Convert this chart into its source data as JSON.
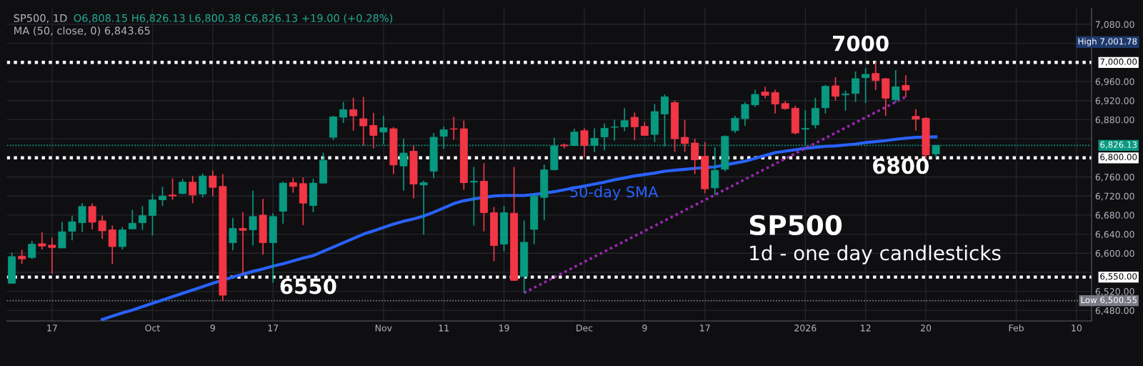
{
  "chart_data": {
    "type": "candlestick",
    "title": "SP500, 1D",
    "subtitle": "O6,808.15 H6,826.13 L6,800.38 C6,826.13 +19.00 (+0.28%)",
    "categories": [
      null,
      null,
      null,
      null,
      "17",
      null,
      null,
      null,
      null,
      null,
      null,
      null,
      null,
      null,
      "Oct",
      null,
      null,
      null,
      null,
      null,
      "9",
      null,
      null,
      null,
      null,
      null,
      "17",
      null,
      null,
      null,
      null,
      null,
      null,
      null,
      null,
      null,
      null,
      "Nov",
      null,
      null,
      null,
      null,
      null,
      "11",
      null,
      null,
      null,
      null,
      null,
      "19",
      null,
      null,
      null,
      null,
      null,
      null,
      null,
      "Dec",
      null,
      null,
      null,
      null,
      null,
      "9",
      null,
      null,
      null,
      null,
      null,
      "17",
      null,
      null,
      null,
      null,
      null,
      null,
      null,
      null,
      null,
      "2026",
      null,
      null,
      null,
      null,
      null,
      "12",
      null,
      null,
      null,
      null,
      null,
      "20",
      null,
      null,
      null,
      null,
      null,
      null,
      null,
      null,
      "Feb",
      null,
      null,
      null,
      null,
      null,
      "10",
      null
    ],
    "ohlc": [
      [
        6537,
        6601,
        6536,
        6593
      ],
      [
        6594,
        6607,
        6578,
        6588
      ],
      [
        6591,
        6626,
        6588,
        6619
      ],
      [
        6620,
        6644,
        6608,
        6615
      ],
      [
        6617,
        6633,
        6557,
        6612
      ],
      [
        6611,
        6666,
        6611,
        6645
      ],
      [
        6646,
        6679,
        6627,
        6666
      ],
      [
        6664,
        6705,
        6645,
        6698
      ],
      [
        6698,
        6705,
        6650,
        6665
      ],
      [
        6668,
        6679,
        6630,
        6647
      ],
      [
        6649,
        6658,
        6578,
        6614
      ],
      [
        6614,
        6655,
        6608,
        6649
      ],
      [
        6651,
        6691,
        6651,
        6663
      ],
      [
        6664,
        6699,
        6649,
        6679
      ],
      [
        6679,
        6724,
        6637,
        6712
      ],
      [
        6712,
        6739,
        6699,
        6720
      ],
      [
        6722,
        6757,
        6712,
        6720
      ],
      [
        6725,
        6756,
        6724,
        6749
      ],
      [
        6749,
        6762,
        6705,
        6722
      ],
      [
        6724,
        6767,
        6717,
        6762
      ],
      [
        6762,
        6773,
        6720,
        6738
      ],
      [
        6740,
        6766,
        6500.55,
        6512
      ],
      [
        6622,
        6674,
        6606,
        6652
      ],
      [
        6652,
        6686,
        6557,
        6648
      ],
      [
        6649,
        6731,
        6616,
        6677
      ],
      [
        6680,
        6714,
        6597,
        6622
      ],
      [
        6622,
        6684,
        6538,
        6677
      ],
      [
        6688,
        6750,
        6662,
        6747
      ],
      [
        6748,
        6758,
        6727,
        6740
      ],
      [
        6746,
        6759,
        6659,
        6705
      ],
      [
        6700,
        6756,
        6686,
        6747
      ],
      [
        6747,
        6811,
        6747,
        6795
      ],
      [
        6843,
        6888,
        6837,
        6886
      ],
      [
        6885,
        6917,
        6873,
        6901
      ],
      [
        6901,
        6926,
        6857,
        6888
      ],
      [
        6882,
        6928,
        6826,
        6867
      ],
      [
        6868,
        6894,
        6820,
        6847
      ],
      [
        6854,
        6888,
        6828,
        6863
      ],
      [
        6861,
        6864,
        6766,
        6785
      ],
      [
        6783,
        6840,
        6731,
        6810
      ],
      [
        6814,
        6826,
        6715,
        6745
      ],
      [
        6743,
        6752,
        6639,
        6748
      ],
      [
        6772,
        6852,
        6757,
        6843
      ],
      [
        6845,
        6866,
        6819,
        6859
      ],
      [
        6861,
        6886,
        6838,
        6860
      ],
      [
        6861,
        6878,
        6733,
        6748
      ],
      [
        6749,
        6781,
        6658,
        6751
      ],
      [
        6751,
        6789,
        6646,
        6685
      ],
      [
        6685,
        6697,
        6583,
        6616
      ],
      [
        6619,
        6699,
        6604,
        6685
      ],
      [
        6684,
        6781,
        6542,
        6543
      ],
      [
        6551,
        6669,
        6517,
        6623
      ],
      [
        6650,
        6726,
        6619,
        6720
      ],
      [
        6717,
        6786,
        6669,
        6775
      ],
      [
        6775,
        6842,
        6774,
        6825
      ],
      [
        6827,
        6830,
        6820,
        6825
      ],
      [
        6826,
        6861,
        6826,
        6854
      ],
      [
        6857,
        6862,
        6801,
        6826
      ],
      [
        6826,
        6862,
        6812,
        6841
      ],
      [
        6844,
        6872,
        6816,
        6862
      ],
      [
        6864,
        6880,
        6836,
        6865
      ],
      [
        6865,
        6904,
        6856,
        6878
      ],
      [
        6885,
        6895,
        6837,
        6865
      ],
      [
        6866,
        6875,
        6847,
        6847
      ],
      [
        6849,
        6913,
        6833,
        6897
      ],
      [
        6892,
        6933,
        6824,
        6928
      ],
      [
        6916,
        6920,
        6813,
        6840
      ],
      [
        6843,
        6880,
        6813,
        6830
      ],
      [
        6831,
        6840,
        6766,
        6796
      ],
      [
        6803,
        6833,
        6726,
        6735
      ],
      [
        6737,
        6822,
        6722,
        6774
      ],
      [
        6776,
        6847,
        6772,
        6845
      ],
      [
        6857,
        6888,
        6852,
        6883
      ],
      [
        6882,
        6917,
        6867,
        6912
      ],
      [
        6911,
        6943,
        6907,
        6933
      ],
      [
        6938,
        6949,
        6925,
        6931
      ],
      [
        6937,
        6943,
        6893,
        6913
      ],
      [
        6914,
        6919,
        6901,
        6903
      ],
      [
        6904,
        6909,
        6849,
        6852
      ],
      [
        6860,
        6900,
        6825,
        6862
      ],
      [
        6869,
        6926,
        6862,
        6904
      ],
      [
        6905,
        6953,
        6893,
        6950
      ],
      [
        6951,
        6969,
        6920,
        6929
      ],
      [
        6932,
        6941,
        6899,
        6934
      ],
      [
        6935,
        6981,
        6917,
        6966
      ],
      [
        6968,
        6988,
        6915,
        6975
      ],
      [
        6977,
        7001.78,
        6942,
        6962
      ],
      [
        6966,
        6967,
        6888,
        6925
      ],
      [
        6922,
        6984,
        6916,
        6949
      ],
      [
        6952,
        6973,
        6927,
        6942
      ],
      [
        6887,
        6902,
        6857,
        6881
      ],
      [
        6883,
        6885,
        6793,
        6806
      ],
      [
        6808.15,
        6826.13,
        6800.38,
        6826.13
      ],
      null,
      null,
      null,
      null,
      null,
      null,
      null,
      null,
      null,
      null,
      null,
      null,
      null,
      null,
      null
    ],
    "colors": [
      "#089981",
      "#f23645",
      "#089981",
      "#f23645",
      "#f23645",
      "#089981",
      "#089981",
      "#089981",
      "#f23645",
      "#f23645",
      "#f23645",
      "#089981",
      "#089981",
      "#089981",
      "#089981",
      "#089981",
      "#f23645",
      "#089981",
      "#f23645",
      "#089981",
      "#f23645",
      "#f23645",
      "#089981",
      "#f23645",
      "#089981",
      "#f23645",
      "#089981",
      "#089981",
      "#f23645",
      "#f23645",
      "#089981",
      "#089981",
      "#089981",
      "#089981",
      "#f23645",
      "#f23645",
      "#f23645",
      "#089981",
      "#f23645",
      "#089981",
      "#f23645",
      "#089981",
      "#089981",
      "#089981",
      "#f23645",
      "#f23645",
      "#089981",
      "#f23645",
      "#f23645",
      "#089981",
      "#f23645",
      "#089981",
      "#089981",
      "#089981",
      "#089981",
      "#f23645",
      "#089981",
      "#f23645",
      "#089981",
      "#089981",
      "#089981",
      "#089981",
      "#f23645",
      "#f23645",
      "#089981",
      "#089981",
      "#f23645",
      "#f23645",
      "#f23645",
      "#f23645",
      "#089981",
      "#089981",
      "#089981",
      "#089981",
      "#089981",
      "#f23645",
      "#f23645",
      "#f23645",
      "#f23645",
      "#089981",
      "#089981",
      "#089981",
      "#f23645",
      "#089981",
      "#089981",
      "#089981",
      "#f23645",
      "#f23645",
      "#089981",
      "#f23645",
      "#f23645",
      "#f23645",
      "#089981",
      null,
      null,
      null,
      null,
      null,
      null,
      null,
      null,
      null,
      null,
      null,
      null,
      null,
      null,
      null
    ],
    "series": [
      {
        "name": "50-day SMA",
        "type": "line",
        "color": "#2962ff",
        "line_style": "solid",
        "values": [
          null,
          null,
          null,
          null,
          null,
          null,
          null,
          null,
          null,
          6461,
          6468,
          6475,
          6481,
          6488,
          6495,
          6502,
          6509,
          6516,
          6523,
          6530,
          6537,
          null,
          6550,
          6556,
          6562,
          6567,
          6573,
          6578,
          6584,
          6590,
          6595,
          6604,
          6613,
          6622,
          6631,
          6640,
          6647,
          6654,
          6661,
          6667,
          6672,
          6678,
          6686,
          6695,
          6704,
          6710,
          6714,
          null,
          6720,
          6721,
          6721,
          6721,
          6723,
          null,
          6729,
          6733,
          6737,
          6741,
          6745,
          6749,
          6754,
          6758,
          6762,
          6765,
          6768,
          6772,
          6774,
          6776,
          6778,
          null,
          6781,
          null,
          6789,
          6793,
          6799,
          6805,
          6811,
          6814,
          6817,
          6820,
          6822,
          6824,
          6825,
          6827,
          6829,
          6832,
          6834,
          6836,
          6839,
          6841,
          6843,
          null,
          6844,
          null,
          null,
          null,
          null,
          null,
          null,
          null,
          null,
          null,
          null,
          null,
          null,
          null,
          null,
          null
        ]
      },
      {
        "type": "line",
        "color": "#9c27b0",
        "line_style": "dotted",
        "values": [
          null,
          null,
          null,
          null,
          null,
          null,
          null,
          null,
          null,
          null,
          null,
          null,
          null,
          null,
          null,
          null,
          null,
          null,
          null,
          null,
          null,
          null,
          null,
          null,
          null,
          null,
          null,
          null,
          null,
          null,
          null,
          null,
          null,
          null,
          null,
          null,
          null,
          null,
          null,
          null,
          null,
          null,
          null,
          null,
          null,
          null,
          null,
          null,
          null,
          null,
          null,
          6517,
          null,
          null,
          null,
          null,
          null,
          null,
          null,
          null,
          null,
          null,
          null,
          null,
          null,
          null,
          null,
          null,
          null,
          null,
          null,
          null,
          null,
          null,
          null,
          null,
          null,
          null,
          null,
          null,
          null,
          null,
          null,
          null,
          null,
          null,
          null,
          null,
          null,
          6928,
          null,
          null,
          null,
          null,
          null,
          null,
          null,
          null,
          null,
          null,
          null,
          null,
          null,
          null,
          null,
          null,
          null,
          null
        ]
      }
    ],
    "ylim": [
      6458,
      7114
    ],
    "yticks": [
      {
        "value": 6480,
        "label": "6,480.00"
      },
      {
        "value": 6520,
        "label": "6,520.00"
      },
      {
        "value": 6560,
        "label": null
      },
      {
        "value": 6600,
        "label": "6,600.00"
      },
      {
        "value": 6640,
        "label": "6,640.00"
      },
      {
        "value": 6680,
        "label": "6,680.00"
      },
      {
        "value": 6720,
        "label": "6,720.00"
      },
      {
        "value": 6760,
        "label": "6,760.00"
      },
      {
        "value": 6840,
        "label": null
      },
      {
        "value": 6880,
        "label": "6,880.00"
      },
      {
        "value": 6920,
        "label": "6,920.00"
      },
      {
        "value": 6960,
        "label": "6,960.00"
      },
      {
        "value": 7040,
        "label": null
      },
      {
        "value": 7080,
        "label": "7,080.00"
      }
    ],
    "ref_lines": [
      {
        "axis": "y",
        "value": 7000,
        "label": "7,000.00",
        "color": "#ffffff",
        "line_style": "dotted"
      },
      {
        "axis": "y",
        "value": 6800,
        "label": "6,800.00",
        "color": "#ffffff",
        "line_style": "dotted"
      },
      {
        "axis": "y",
        "value": 6550,
        "label": "6,550.00",
        "color": "#ffffff",
        "line_style": "dotted"
      },
      {
        "axis": "y",
        "value": 6826.13,
        "label": "6,826.13",
        "color": "#089981",
        "line_style": "dotted"
      },
      {
        "axis": "y",
        "value": 6500.55,
        "label": "Low 6,500.55",
        "color": "#787b86",
        "line_style": "dotted"
      }
    ],
    "annotations": [
      "MA (50, close, 0) 6,843.65",
      "High 7,001.78",
      "7000",
      "6800",
      "6550",
      "SP500",
      "1d - one day candlesticks"
    ],
    "grid": true
  }
}
